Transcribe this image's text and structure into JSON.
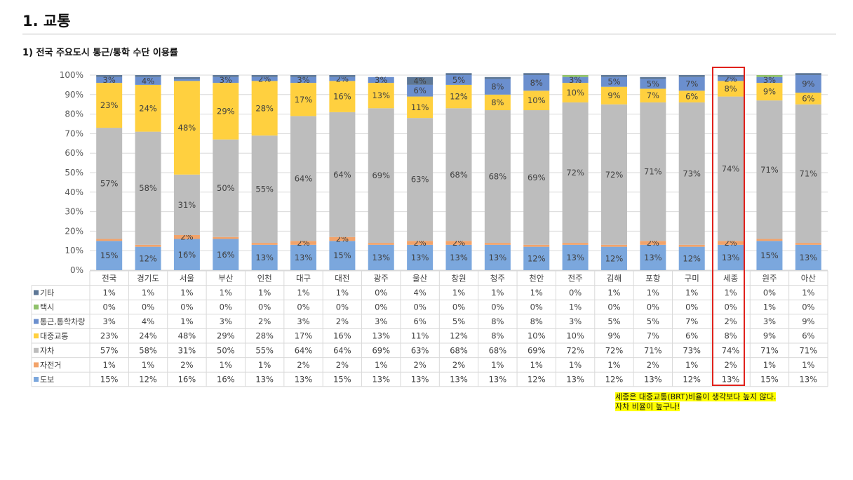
{
  "page": {
    "title": "1. 교통",
    "subtitle": "1) 전국 주요도시 통근/통학 수단 이용률",
    "note_line1": "세종은 대중교통(BRT)비율이  생각보다  높지  않다.",
    "note_line2": "자차 비율이 높구나!"
  },
  "chart_data": {
    "type": "bar",
    "stacked": true,
    "percent_stacked": true,
    "title": "",
    "xlabel": "",
    "ylabel": "",
    "ylim": [
      0,
      100
    ],
    "y_ticks": [
      "0%",
      "10%",
      "20%",
      "30%",
      "40%",
      "50%",
      "60%",
      "70%",
      "80%",
      "90%",
      "100%"
    ],
    "grid": true,
    "legend": "left-table",
    "highlight_category": "세종",
    "categories": [
      "전국",
      "경기도",
      "서울",
      "부산",
      "인천",
      "대구",
      "대전",
      "광주",
      "울산",
      "창원",
      "청주",
      "천안",
      "전주",
      "김해",
      "포항",
      "구미",
      "세종",
      "원주",
      "아산"
    ],
    "series": [
      {
        "name": "도보",
        "color": "#7ba7dd",
        "values": [
          15,
          12,
          16,
          16,
          13,
          13,
          15,
          13,
          13,
          13,
          13,
          12,
          13,
          12,
          13,
          12,
          13,
          15,
          13
        ]
      },
      {
        "name": "자전거",
        "color": "#f2a36a",
        "values": [
          1,
          1,
          2,
          1,
          1,
          2,
          2,
          1,
          2,
          2,
          1,
          1,
          1,
          1,
          2,
          1,
          2,
          1,
          1
        ]
      },
      {
        "name": "자차",
        "color": "#bdbdbd",
        "values": [
          57,
          58,
          31,
          50,
          55,
          64,
          64,
          69,
          63,
          68,
          68,
          69,
          72,
          72,
          71,
          73,
          74,
          71,
          71
        ]
      },
      {
        "name": "대중교통",
        "color": "#ffd03f",
        "values": [
          23,
          24,
          48,
          29,
          28,
          17,
          16,
          13,
          11,
          12,
          8,
          10,
          10,
          9,
          7,
          6,
          8,
          9,
          6
        ]
      },
      {
        "name": "통근,통학차량",
        "color": "#6b8fce",
        "values": [
          3,
          4,
          1,
          3,
          2,
          3,
          2,
          3,
          6,
          5,
          8,
          8,
          3,
          5,
          5,
          7,
          2,
          3,
          9
        ]
      },
      {
        "name": "택시",
        "color": "#8fc16a",
        "values": [
          0,
          0,
          0,
          0,
          0,
          0,
          0,
          0,
          0,
          0,
          0,
          0,
          1,
          0,
          0,
          0,
          0,
          1,
          0
        ]
      },
      {
        "name": "기타",
        "color": "#5d7796",
        "values": [
          1,
          1,
          1,
          1,
          1,
          1,
          1,
          0,
          4,
          1,
          1,
          1,
          0,
          1,
          1,
          1,
          1,
          0,
          1
        ]
      }
    ],
    "table_rows": [
      {
        "name": "기타",
        "cells": [
          "1%",
          "1%",
          "1%",
          "1%",
          "1%",
          "1%",
          "1%",
          "0%",
          "4%",
          "1%",
          "1%",
          "1%",
          "0%",
          "1%",
          "1%",
          "1%",
          "1%",
          "0%",
          "1%"
        ]
      },
      {
        "name": "택시",
        "cells": [
          "0%",
          "0%",
          "0%",
          "0%",
          "0%",
          "0%",
          "0%",
          "0%",
          "0%",
          "0%",
          "0%",
          "0%",
          "1%",
          "0%",
          "0%",
          "0%",
          "0%",
          "1%",
          "0%"
        ]
      },
      {
        "name": "통근,통학차량",
        "cells": [
          "3%",
          "4%",
          "1%",
          "3%",
          "2%",
          "3%",
          "2%",
          "3%",
          "6%",
          "5%",
          "8%",
          "8%",
          "3%",
          "5%",
          "5%",
          "7%",
          "2%",
          "3%",
          "9%"
        ]
      },
      {
        "name": "대중교통",
        "cells": [
          "23%",
          "24%",
          "48%",
          "29%",
          "28%",
          "17%",
          "16%",
          "13%",
          "11%",
          "12%",
          "8%",
          "10%",
          "10%",
          "9%",
          "7%",
          "6%",
          "8%",
          "9%",
          "6%"
        ]
      },
      {
        "name": "자차",
        "cells": [
          "57%",
          "58%",
          "31%",
          "50%",
          "55%",
          "64%",
          "64%",
          "69%",
          "63%",
          "68%",
          "68%",
          "69%",
          "72%",
          "72%",
          "71%",
          "73%",
          "74%",
          "71%",
          "71%"
        ]
      },
      {
        "name": "자전거",
        "cells": [
          "1%",
          "1%",
          "2%",
          "1%",
          "1%",
          "2%",
          "2%",
          "1%",
          "2%",
          "2%",
          "1%",
          "1%",
          "1%",
          "1%",
          "2%",
          "1%",
          "2%",
          "1%",
          "1%"
        ]
      },
      {
        "name": "도보",
        "cells": [
          "15%",
          "12%",
          "16%",
          "16%",
          "13%",
          "13%",
          "15%",
          "13%",
          "13%",
          "13%",
          "13%",
          "12%",
          "13%",
          "12%",
          "13%",
          "12%",
          "13%",
          "15%",
          "13%"
        ]
      }
    ],
    "row_colors": {
      "기타": "#5d7796",
      "택시": "#8fc16a",
      "통근,통학차량": "#6b8fce",
      "대중교통": "#ffd03f",
      "자차": "#bdbdbd",
      "자전거": "#f2a36a",
      "도보": "#7ba7dd"
    }
  }
}
